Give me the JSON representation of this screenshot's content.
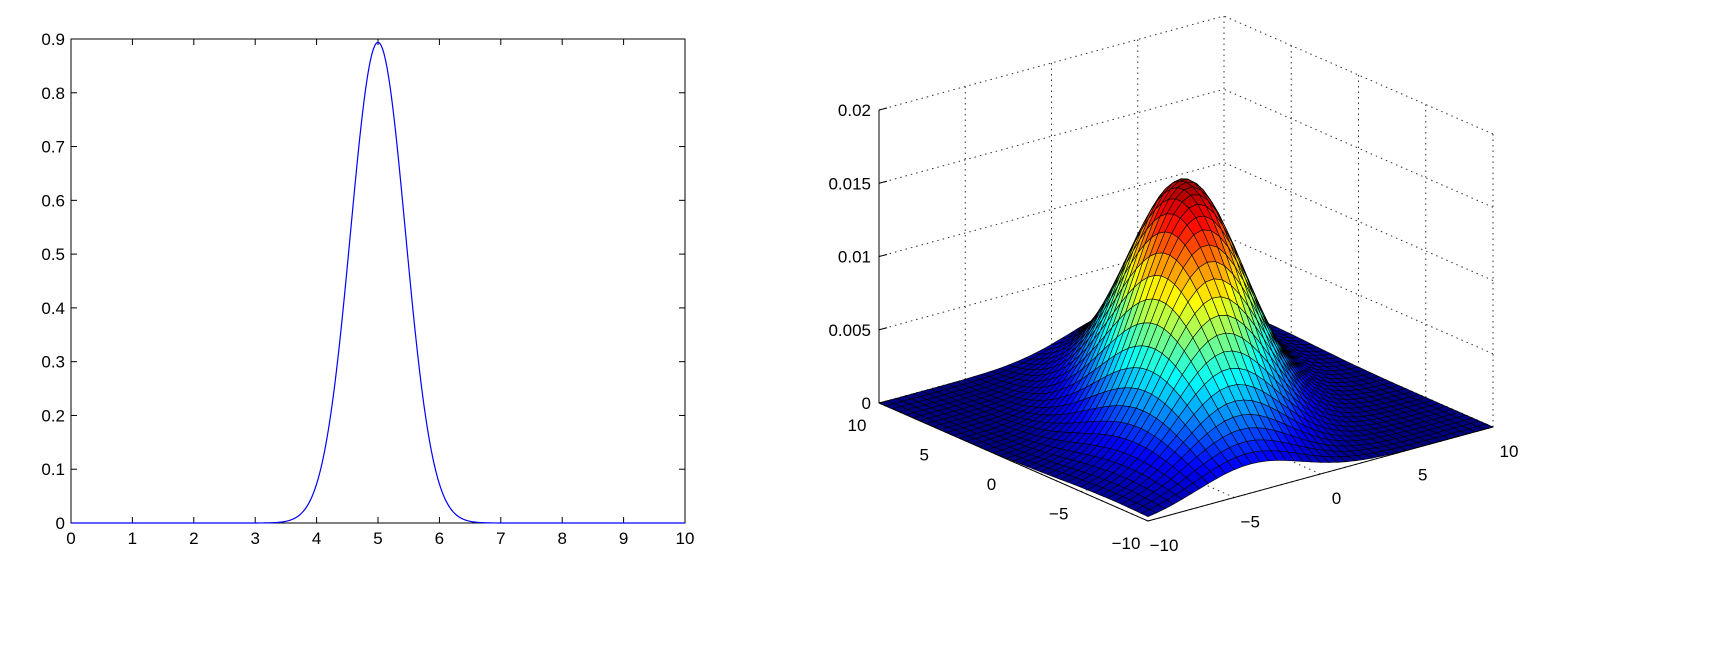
{
  "chart_data": [
    {
      "type": "line",
      "title": "",
      "xlabel": "",
      "ylabel": "",
      "xlim": [
        0,
        10
      ],
      "ylim": [
        0,
        0.9
      ],
      "xticks": [
        "0",
        "1",
        "2",
        "3",
        "4",
        "5",
        "6",
        "7",
        "8",
        "9",
        "10"
      ],
      "yticks": [
        "0",
        "0.1",
        "0.2",
        "0.3",
        "0.4",
        "0.5",
        "0.6",
        "0.7",
        "0.8",
        "0.9"
      ],
      "grid": false,
      "line_color": "#0000ff",
      "series": [
        {
          "x": [
            0,
            0.5,
            1,
            1.5,
            2,
            2.5,
            3,
            3.25,
            3.5,
            3.75,
            4,
            4.25,
            4.5,
            4.75,
            5,
            5.25,
            5.5,
            5.75,
            6,
            6.25,
            6.5,
            6.75,
            7,
            7.5,
            8,
            8.5,
            9,
            9.5,
            10
          ],
          "y": [
            0,
            0,
            0,
            0,
            0,
            0,
            0.001,
            0.005,
            0.021,
            0.069,
            0.181,
            0.379,
            0.634,
            0.845,
            0.894,
            0.845,
            0.634,
            0.379,
            0.181,
            0.069,
            0.021,
            0.005,
            0.001,
            0,
            0,
            0,
            0,
            0,
            0
          ]
        }
      ]
    },
    {
      "type": "surface",
      "title": "",
      "xlim": [
        -10,
        10
      ],
      "ylim": [
        -10,
        10
      ],
      "zlim": [
        0,
        0.02
      ],
      "xticks": [
        "−10",
        "−5",
        "0",
        "5",
        "10"
      ],
      "yticks": [
        "−10",
        "−5",
        "0",
        "5",
        "10"
      ],
      "zticks": [
        "0",
        "0.005",
        "0.01",
        "0.015",
        "0.02"
      ],
      "grid": true,
      "colormap": "jet",
      "peak": {
        "x": 0,
        "y": 0,
        "z": 0.0159
      }
    }
  ]
}
